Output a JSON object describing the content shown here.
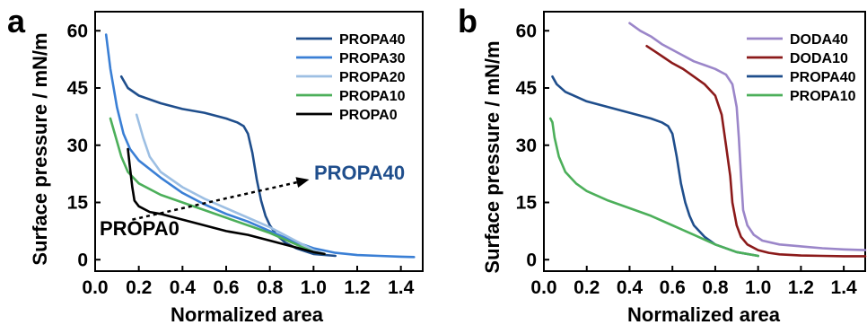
{
  "chart_data": [
    {
      "type": "line",
      "panel_label": "a",
      "xlabel": "Normalized area",
      "ylabel": "Surface pressure / mN/m",
      "xlim": [
        0.0,
        1.5
      ],
      "ylim": [
        -3,
        65
      ],
      "xticks": [
        "0.0",
        "0.2",
        "0.4",
        "0.6",
        "0.8",
        "1.0",
        "1.2",
        "1.4"
      ],
      "yticks": [
        "0",
        "15",
        "30",
        "45",
        "60"
      ],
      "xtick_values": [
        0.0,
        0.2,
        0.4,
        0.6,
        0.8,
        1.0,
        1.2,
        1.4
      ],
      "ytick_values": [
        0,
        15,
        30,
        45,
        60
      ],
      "grid": false,
      "legend_position": "top-right",
      "series": [
        {
          "name": "PROPA40",
          "color": "#1f4e8c",
          "x": [
            0.12,
            0.15,
            0.2,
            0.3,
            0.4,
            0.5,
            0.6,
            0.65,
            0.68,
            0.7,
            0.72,
            0.74,
            0.76,
            0.78,
            0.8,
            0.83,
            0.87,
            0.92,
            1.0,
            1.1
          ],
          "y": [
            48,
            45,
            43,
            41,
            39.5,
            38.5,
            37,
            36,
            35,
            33,
            28,
            21,
            15.5,
            11.5,
            9,
            6.5,
            4.5,
            3,
            1.5,
            1
          ]
        },
        {
          "name": "PROPA30",
          "color": "#3a7fd5",
          "x": [
            0.05,
            0.07,
            0.1,
            0.13,
            0.16,
            0.2,
            0.3,
            0.4,
            0.5,
            0.6,
            0.7,
            0.8,
            0.9,
            1.0,
            1.1,
            1.2,
            1.3,
            1.4,
            1.46
          ],
          "y": [
            59,
            50,
            40,
            33,
            29,
            26,
            21.5,
            17.5,
            14.5,
            12,
            10,
            7.5,
            5,
            3,
            1.8,
            1.2,
            1,
            0.8,
            0.7
          ]
        },
        {
          "name": "PROPA20",
          "color": "#9dbfe3",
          "x": [
            0.19,
            0.22,
            0.25,
            0.3,
            0.4,
            0.5,
            0.6,
            0.7,
            0.8,
            0.9,
            1.0,
            1.05
          ],
          "y": [
            38,
            32,
            27,
            23,
            19,
            16,
            13.5,
            11,
            8.5,
            5.5,
            2.5,
            1.5
          ]
        },
        {
          "name": "PROPA10",
          "color": "#4caf5a",
          "x": [
            0.07,
            0.09,
            0.12,
            0.15,
            0.2,
            0.3,
            0.4,
            0.5,
            0.6,
            0.7,
            0.8,
            0.9,
            1.0,
            1.05
          ],
          "y": [
            37,
            33,
            27,
            23,
            20,
            17,
            15,
            13,
            11,
            9,
            7,
            4.5,
            2,
            1.5
          ]
        },
        {
          "name": "PROPA0",
          "color": "#000000",
          "x": [
            0.15,
            0.16,
            0.17,
            0.18,
            0.2,
            0.25,
            0.3,
            0.4,
            0.5,
            0.6,
            0.7,
            0.8,
            0.9,
            1.0,
            1.05
          ],
          "y": [
            29,
            24,
            19,
            15.5,
            14,
            12.5,
            12,
            10.5,
            9,
            7.5,
            6.5,
            5,
            3.5,
            2,
            1.5
          ]
        }
      ],
      "annotations": [
        {
          "text": "PROPA40",
          "color": "#1f4e8c"
        },
        {
          "text": "PROPA0",
          "color": "#000000"
        }
      ],
      "arrow": {
        "from": [
          0.17,
          10.5
        ],
        "to": [
          0.98,
          21
        ],
        "style": "dashed"
      }
    },
    {
      "type": "line",
      "panel_label": "b",
      "xlabel": "Normalized area",
      "ylabel": "Surface pressure / mN/m",
      "xlim": [
        0.0,
        1.5
      ],
      "ylim": [
        -3,
        65
      ],
      "xticks": [
        "0.0",
        "0.2",
        "0.4",
        "0.6",
        "0.8",
        "1.0",
        "1.2",
        "1.4"
      ],
      "yticks": [
        "0",
        "15",
        "30",
        "45",
        "60"
      ],
      "xtick_values": [
        0.0,
        0.2,
        0.4,
        0.6,
        0.8,
        1.0,
        1.2,
        1.4
      ],
      "ytick_values": [
        0,
        15,
        30,
        45,
        60
      ],
      "grid": false,
      "legend_position": "top-right",
      "series": [
        {
          "name": "DODA40",
          "color": "#9b86c9",
          "x": [
            0.4,
            0.45,
            0.5,
            0.55,
            0.6,
            0.65,
            0.7,
            0.75,
            0.8,
            0.85,
            0.88,
            0.9,
            0.91,
            0.92,
            0.93,
            0.95,
            0.98,
            1.02,
            1.1,
            1.2,
            1.3,
            1.4,
            1.5
          ],
          "y": [
            62,
            60,
            58.5,
            56.5,
            55,
            53.5,
            52,
            51,
            50,
            48.5,
            46,
            40,
            32,
            22,
            13,
            9,
            6.5,
            5,
            4,
            3.5,
            3,
            2.7,
            2.5
          ]
        },
        {
          "name": "DODA10",
          "color": "#8b1a1a",
          "x": [
            0.48,
            0.52,
            0.56,
            0.6,
            0.65,
            0.7,
            0.75,
            0.8,
            0.83,
            0.85,
            0.87,
            0.88,
            0.9,
            0.92,
            0.95,
            1.0,
            1.05,
            1.1,
            1.2,
            1.3,
            1.4,
            1.5
          ],
          "y": [
            56,
            54.5,
            53,
            51.5,
            50,
            48,
            46,
            43,
            38,
            30,
            22,
            15,
            9,
            6,
            4,
            2.5,
            1.8,
            1.4,
            1.1,
            1,
            0.9,
            0.9
          ]
        },
        {
          "name": "PROPA40",
          "color": "#1f4e8c",
          "x": [
            0.04,
            0.06,
            0.1,
            0.2,
            0.3,
            0.4,
            0.5,
            0.55,
            0.58,
            0.6,
            0.62,
            0.64,
            0.66,
            0.68,
            0.7,
            0.75,
            0.8,
            0.9,
            1.0
          ],
          "y": [
            48,
            46,
            44,
            41.5,
            40,
            38.5,
            37,
            36,
            35,
            33,
            27,
            20,
            15,
            11.5,
            9,
            6,
            4,
            2,
            1
          ]
        },
        {
          "name": "PROPA10",
          "color": "#4caf5a",
          "x": [
            0.03,
            0.04,
            0.05,
            0.07,
            0.1,
            0.15,
            0.2,
            0.3,
            0.4,
            0.5,
            0.6,
            0.7,
            0.8,
            0.9,
            1.0
          ],
          "y": [
            37,
            36,
            32,
            27,
            23,
            20,
            18,
            15.5,
            13.5,
            11.5,
            9,
            6.5,
            4,
            2,
            1
          ]
        }
      ]
    }
  ]
}
